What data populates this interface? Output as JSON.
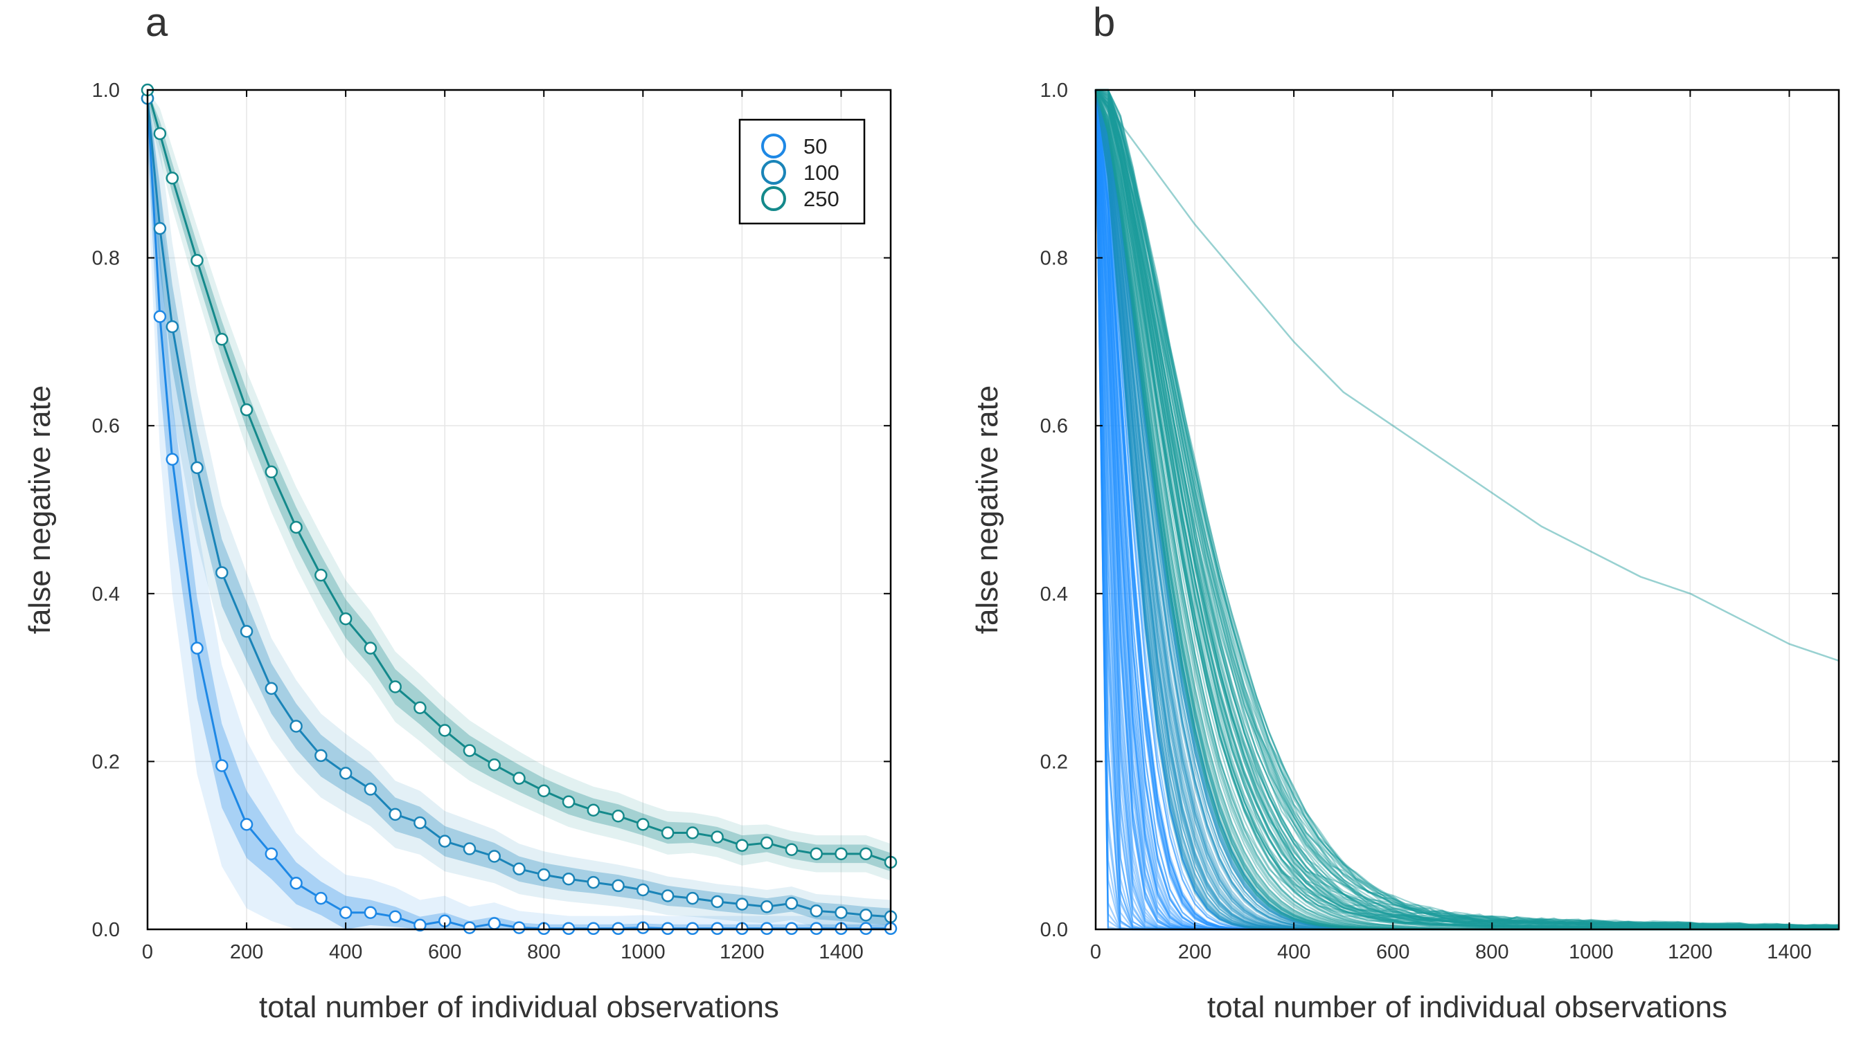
{
  "colors": {
    "series_50": "#1e88e5",
    "series_100": "#1a84b8",
    "series_250": "#14898b",
    "panel_b_lines_light": "#1e90ff",
    "panel_b_lines_teal": "#1a9a9a"
  },
  "chart_data": [
    {
      "panel": "a",
      "type": "line",
      "xlabel": "total number of individual observations",
      "ylabel": "false negative rate",
      "xlim": [
        0,
        1500
      ],
      "ylim": [
        0,
        1.0
      ],
      "xticks": [
        "0",
        "200",
        "400",
        "600",
        "800",
        "1000",
        "1200",
        "1400"
      ],
      "yticks": [
        "0.0",
        "0.2",
        "0.4",
        "0.6",
        "0.8",
        "1.0"
      ],
      "grid": true,
      "legend": {
        "position": "top-right",
        "entries": [
          "50",
          "100",
          "250"
        ]
      },
      "x": [
        0,
        25,
        50,
        100,
        150,
        200,
        250,
        300,
        350,
        400,
        450,
        500,
        550,
        600,
        650,
        700,
        750,
        800,
        850,
        900,
        950,
        1000,
        1050,
        1100,
        1150,
        1200,
        1250,
        1300,
        1350,
        1400,
        1450,
        1500
      ],
      "series": [
        {
          "name": "50",
          "values": [
            0.99,
            0.73,
            0.56,
            0.335,
            0.195,
            0.125,
            0.09,
            0.055,
            0.037,
            0.02,
            0.02,
            0.015,
            0.005,
            0.01,
            0.002,
            0.007,
            0.002,
            0.001,
            0.001,
            0.001,
            0.001,
            0.002,
            0.001,
            0.001,
            0.001,
            0.001,
            0.001,
            0.001,
            0.001,
            0.001,
            0.001,
            0.001
          ],
          "band_inner": [
            0.05,
            0.08,
            0.07,
            0.06,
            0.05,
            0.04,
            0.03,
            0.025,
            0.02,
            0.02,
            0.015,
            0.012,
            0.01,
            0.01,
            0.008,
            0.008,
            0.006,
            0.005,
            0.005,
            0.005,
            0.005,
            0.005,
            0.005,
            0.005,
            0.005,
            0.005,
            0.005,
            0.005,
            0.005,
            0.005,
            0.005,
            0.005
          ],
          "band_outer": [
            0.1,
            0.16,
            0.16,
            0.15,
            0.12,
            0.1,
            0.08,
            0.06,
            0.05,
            0.045,
            0.04,
            0.035,
            0.03,
            0.03,
            0.025,
            0.025,
            0.02,
            0.018,
            0.015,
            0.015,
            0.015,
            0.015,
            0.015,
            0.015,
            0.015,
            0.015,
            0.015,
            0.015,
            0.015,
            0.015,
            0.015,
            0.015
          ]
        },
        {
          "name": "100",
          "values": [
            0.99,
            0.835,
            0.718,
            0.55,
            0.425,
            0.355,
            0.287,
            0.242,
            0.207,
            0.186,
            0.167,
            0.137,
            0.127,
            0.105,
            0.096,
            0.087,
            0.072,
            0.065,
            0.06,
            0.056,
            0.052,
            0.047,
            0.04,
            0.037,
            0.033,
            0.03,
            0.027,
            0.031,
            0.022,
            0.02,
            0.017,
            0.015
          ],
          "band_inner": [
            0.03,
            0.05,
            0.05,
            0.045,
            0.04,
            0.035,
            0.03,
            0.027,
            0.025,
            0.023,
            0.021,
            0.02,
            0.019,
            0.018,
            0.017,
            0.016,
            0.015,
            0.014,
            0.014,
            0.013,
            0.013,
            0.012,
            0.012,
            0.011,
            0.011,
            0.011,
            0.01,
            0.01,
            0.01,
            0.01,
            0.01,
            0.01
          ],
          "band_outer": [
            0.06,
            0.1,
            0.1,
            0.09,
            0.08,
            0.07,
            0.06,
            0.055,
            0.05,
            0.047,
            0.044,
            0.04,
            0.038,
            0.036,
            0.034,
            0.032,
            0.03,
            0.028,
            0.027,
            0.026,
            0.025,
            0.024,
            0.023,
            0.022,
            0.021,
            0.021,
            0.02,
            0.02,
            0.02,
            0.02,
            0.02,
            0.02
          ]
        },
        {
          "name": "250",
          "values": [
            1.0,
            0.948,
            0.895,
            0.797,
            0.703,
            0.619,
            0.545,
            0.479,
            0.422,
            0.37,
            0.335,
            0.289,
            0.264,
            0.237,
            0.213,
            0.196,
            0.18,
            0.165,
            0.152,
            0.142,
            0.135,
            0.125,
            0.115,
            0.115,
            0.11,
            0.1,
            0.103,
            0.095,
            0.09,
            0.09,
            0.09,
            0.08
          ],
          "band_inner": [
            0.01,
            0.015,
            0.018,
            0.02,
            0.022,
            0.023,
            0.024,
            0.024,
            0.024,
            0.023,
            0.022,
            0.021,
            0.02,
            0.019,
            0.018,
            0.017,
            0.016,
            0.015,
            0.015,
            0.014,
            0.014,
            0.013,
            0.013,
            0.012,
            0.012,
            0.012,
            0.011,
            0.011,
            0.011,
            0.011,
            0.011,
            0.011
          ],
          "band_outer": [
            0.02,
            0.03,
            0.036,
            0.04,
            0.044,
            0.046,
            0.048,
            0.048,
            0.048,
            0.046,
            0.044,
            0.042,
            0.04,
            0.038,
            0.036,
            0.034,
            0.032,
            0.03,
            0.03,
            0.028,
            0.028,
            0.026,
            0.026,
            0.024,
            0.024,
            0.024,
            0.022,
            0.022,
            0.022,
            0.022,
            0.022,
            0.022
          ]
        }
      ]
    },
    {
      "panel": "b",
      "type": "line",
      "xlabel": "total number of individual observations",
      "ylabel": "false negative rate",
      "xlim": [
        0,
        1500
      ],
      "ylim": [
        0,
        1.0
      ],
      "xticks": [
        "0",
        "200",
        "400",
        "600",
        "800",
        "1000",
        "1200",
        "1400"
      ],
      "yticks": [
        "0.0",
        "0.2",
        "0.4",
        "0.6",
        "0.8",
        "1.0"
      ],
      "grid": true,
      "outlier_series": {
        "x": [
          0,
          100,
          200,
          300,
          400,
          500,
          600,
          700,
          800,
          900,
          1000,
          1100,
          1200,
          1300,
          1400,
          1500
        ],
        "values": [
          1.0,
          0.92,
          0.84,
          0.77,
          0.7,
          0.64,
          0.6,
          0.56,
          0.52,
          0.48,
          0.45,
          0.42,
          0.4,
          0.37,
          0.34,
          0.32
        ]
      }
    }
  ]
}
